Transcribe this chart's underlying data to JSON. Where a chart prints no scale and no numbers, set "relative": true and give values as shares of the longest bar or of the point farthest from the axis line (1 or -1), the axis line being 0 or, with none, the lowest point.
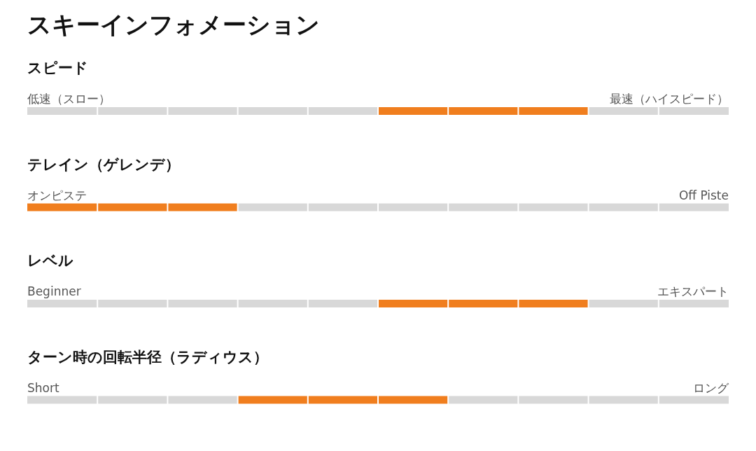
{
  "chart_data": [
    {
      "type": "other",
      "title": "スキーインフォメーション"
    },
    {
      "type": "bar",
      "title": "スピード",
      "relative": true,
      "categories": [
        null,
        null,
        null,
        null,
        null,
        null,
        null,
        null,
        null,
        null
      ],
      "values": [
        1,
        1,
        1,
        1,
        1,
        1,
        1,
        1,
        1,
        1
      ],
      "colors": [
        "#d8d8d8",
        "#d8d8d8",
        "#d8d8d8",
        "#d8d8d8",
        "#d8d8d8",
        "#f07e1e",
        "#f07e1e",
        "#f07e1e",
        "#d8d8d8",
        "#d8d8d8"
      ],
      "annotations": [
        "低速（スロー）",
        "最速（ハイスピード）"
      ]
    },
    {
      "type": "bar",
      "title": "テレイン（ゲレンデ）",
      "relative": true,
      "categories": [
        null,
        null,
        null,
        null,
        null,
        null,
        null,
        null,
        null,
        null
      ],
      "values": [
        1,
        1,
        1,
        1,
        1,
        1,
        1,
        1,
        1,
        1
      ],
      "colors": [
        "#f07e1e",
        "#f07e1e",
        "#f07e1e",
        "#d8d8d8",
        "#d8d8d8",
        "#d8d8d8",
        "#d8d8d8",
        "#d8d8d8",
        "#d8d8d8",
        "#d8d8d8"
      ],
      "annotations": [
        "オンピステ",
        "Off Piste"
      ]
    },
    {
      "type": "bar",
      "title": "レベル",
      "relative": true,
      "categories": [
        null,
        null,
        null,
        null,
        null,
        null,
        null,
        null,
        null,
        null
      ],
      "values": [
        1,
        1,
        1,
        1,
        1,
        1,
        1,
        1,
        1,
        1
      ],
      "colors": [
        "#d8d8d8",
        "#d8d8d8",
        "#d8d8d8",
        "#d8d8d8",
        "#d8d8d8",
        "#f07e1e",
        "#f07e1e",
        "#f07e1e",
        "#d8d8d8",
        "#d8d8d8"
      ],
      "annotations": [
        "Beginner",
        "エキスパート"
      ]
    },
    {
      "type": "bar",
      "title": "ターン時の回転半径（ラディウス）",
      "relative": true,
      "categories": [
        null,
        null,
        null,
        null,
        null,
        null,
        null,
        null,
        null,
        null
      ],
      "values": [
        1,
        1,
        1,
        1,
        1,
        1,
        1,
        1,
        1,
        1
      ],
      "colors": [
        "#d8d8d8",
        "#d8d8d8",
        "#d8d8d8",
        "#f07e1e",
        "#f07e1e",
        "#f07e1e",
        "#d8d8d8",
        "#d8d8d8",
        "#d8d8d8",
        "#d8d8d8"
      ],
      "annotations": [
        "Short",
        "ロング"
      ]
    }
  ]
}
